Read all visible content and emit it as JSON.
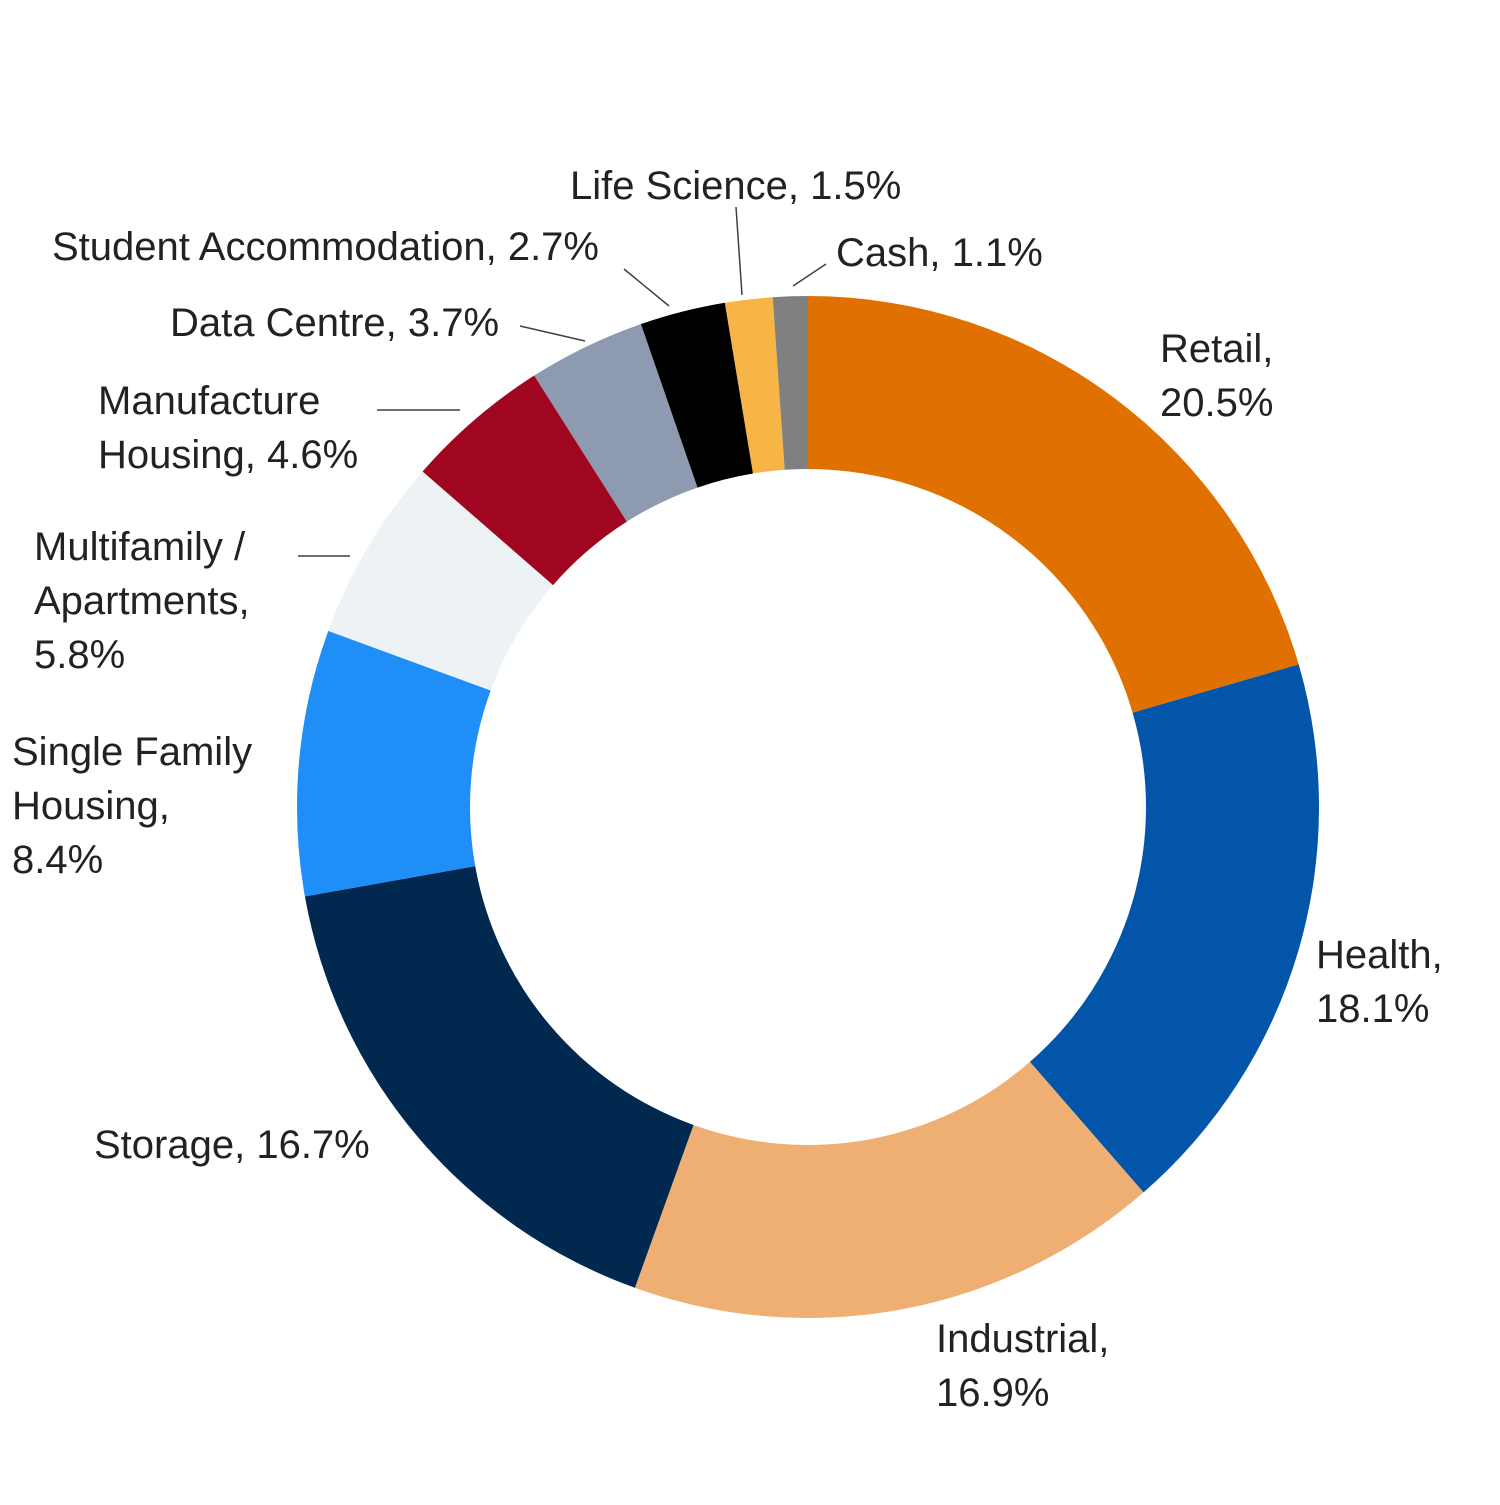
{
  "chart_data": {
    "type": "pie",
    "variant": "donut",
    "title": "",
    "start": "12 o'clock",
    "direction": "clockwise",
    "legend": "none",
    "slices": [
      {
        "name": "Retail",
        "value": 20.5,
        "label_lines": [
          "Retail,",
          "20.5%"
        ],
        "color": "#E07000"
      },
      {
        "name": "Health",
        "value": 18.1,
        "label_lines": [
          "Health,",
          "18.1%"
        ],
        "color": "#0255A8"
      },
      {
        "name": "Industrial",
        "value": 16.9,
        "label_lines": [
          "Industrial,",
          "16.9%"
        ],
        "color": "#EFAE72"
      },
      {
        "name": "Storage",
        "value": 16.7,
        "label_lines": [
          "Storage, 16.7%"
        ],
        "color": "#01284F"
      },
      {
        "name": "Single Family Housing",
        "value": 8.4,
        "label_lines": [
          "Single Family",
          "Housing,",
          "8.4%"
        ],
        "color": "#208EF7"
      },
      {
        "name": "Multifamily / Apartments",
        "value": 5.8,
        "label_lines": [
          "Multifamily /",
          "Apartments,",
          "5.8%"
        ],
        "color": "#EDF2F5"
      },
      {
        "name": "Manufacture Housing",
        "value": 4.6,
        "label_lines": [
          "Manufacture",
          "Housing, 4.6%"
        ],
        "color": "#A0061F"
      },
      {
        "name": "Data Centre",
        "value": 3.7,
        "label_lines": [
          "Data Centre, 3.7%"
        ],
        "color": "#8D9AAF"
      },
      {
        "name": "Student Accommodation",
        "value": 2.7,
        "label_lines": [
          "Student Accommodation, 2.7%"
        ],
        "color": "#000000"
      },
      {
        "name": "Life Science",
        "value": 1.5,
        "label_lines": [
          "Life Science, 1.5%"
        ],
        "color": "#F6B544"
      },
      {
        "name": "Cash",
        "value": 1.1,
        "label_lines": [
          "Cash, 1.1%"
        ],
        "color": "#808080"
      }
    ]
  }
}
